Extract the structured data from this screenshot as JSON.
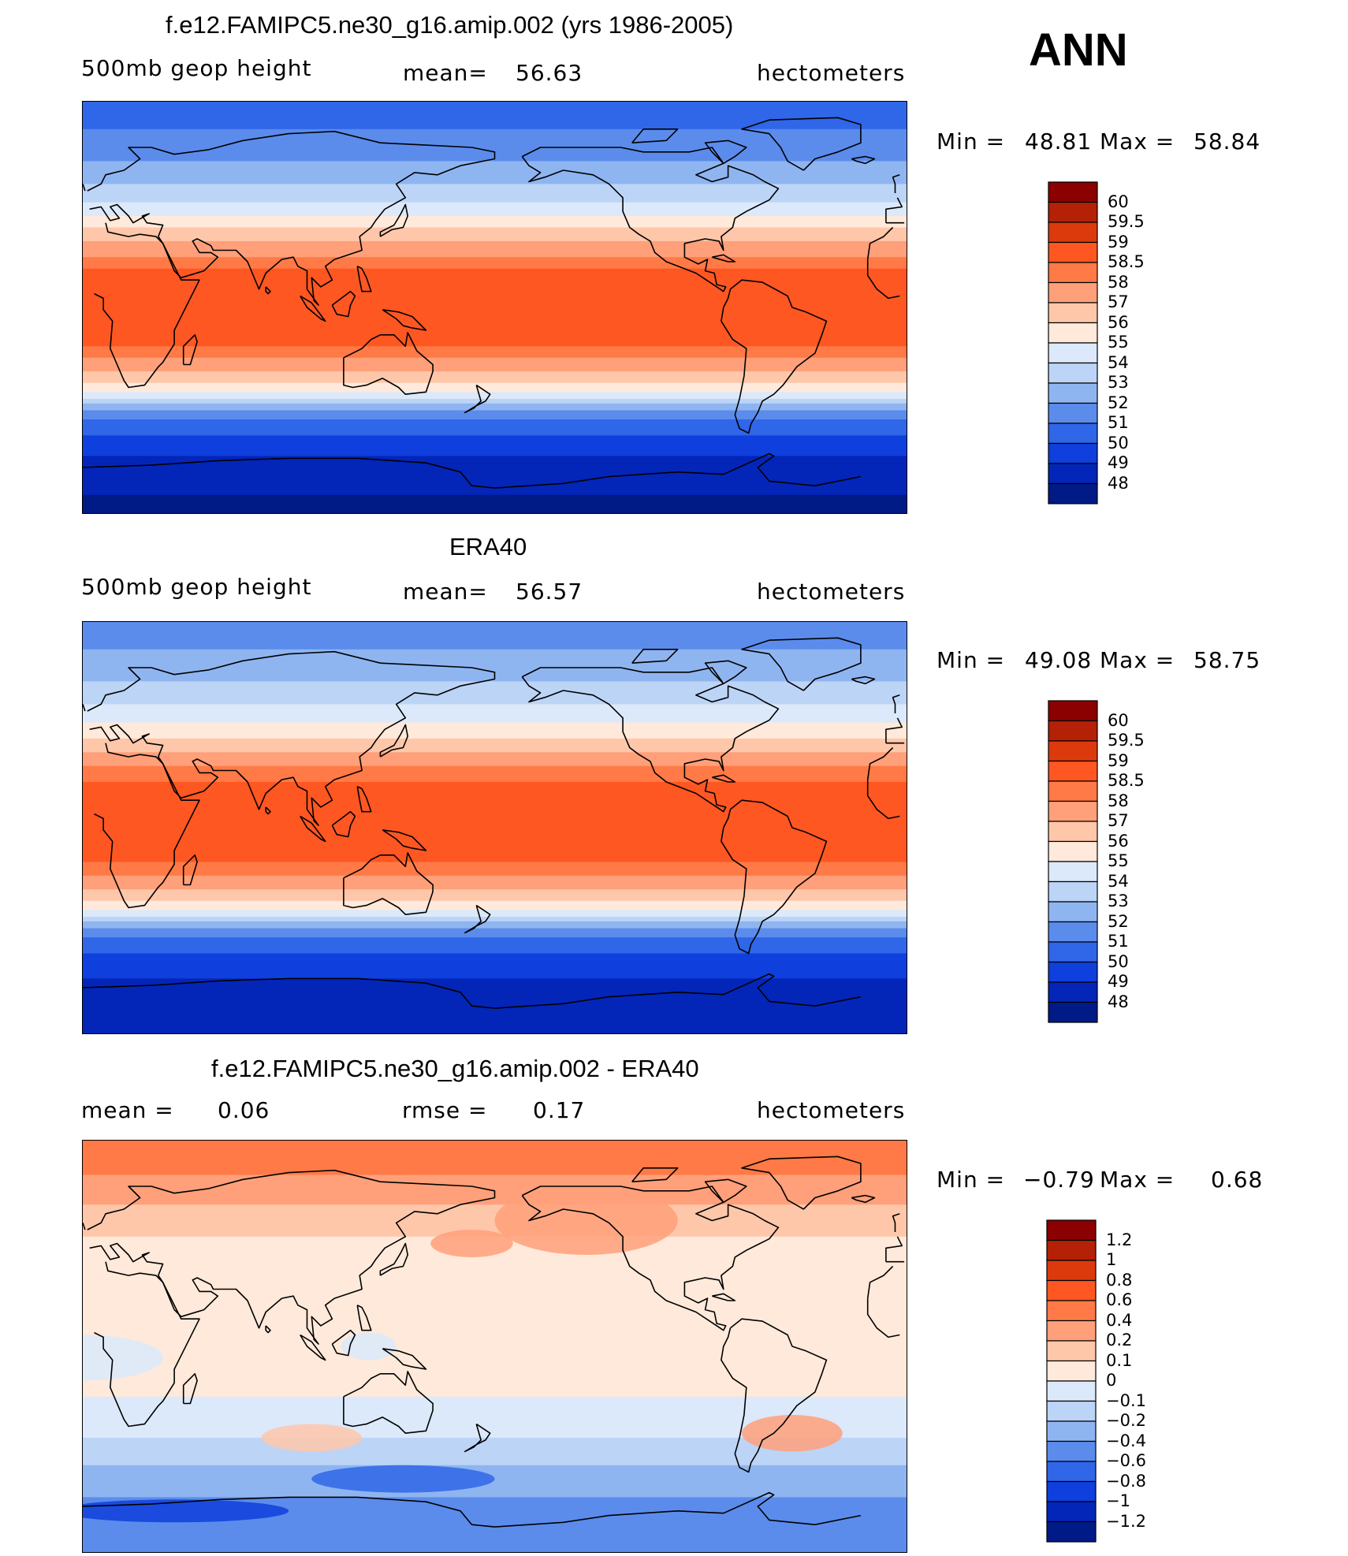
{
  "season": "ANN",
  "panels": [
    {
      "title": "f.e12.FAMIPC5.ne30_g16.amip.002 (yrs 1986-2005)",
      "left_label": "500mb geop height",
      "stat_label": "mean=",
      "stat_value": "56.63",
      "units": "hectometers",
      "min_label": "Min =",
      "min_value": "48.81",
      "max_label": "Max =",
      "max_value": "58.84"
    },
    {
      "title": "ERA40",
      "left_label": "500mb geop height",
      "stat_label": "mean=",
      "stat_value": "56.57",
      "units": "hectometers",
      "min_label": "Min =",
      "min_value": "49.08",
      "max_label": "Max =",
      "max_value": "58.75"
    },
    {
      "title": "f.e12.FAMIPC5.ne30_g16.amip.002 - ERA40",
      "left_label": "mean =",
      "left_value": "0.06",
      "stat_label": "rmse =",
      "stat_value": "0.17",
      "units": "hectometers",
      "min_label": "Min =",
      "min_value": "−0.79",
      "max_label": "Max =",
      "max_value": "0.68"
    }
  ],
  "chart_data": [
    {
      "type": "heatmap",
      "title": "f.e12.FAMIPC5.ne30_g16.amip.002 (yrs 1986-2005)",
      "variable": "500mb geop height",
      "units": "hectometers",
      "mean": 56.63,
      "min": 48.81,
      "max": 58.84,
      "colorbar_levels": [
        "60",
        "59.5",
        "59",
        "58.5",
        "58",
        "57",
        "56",
        "55",
        "54",
        "53",
        "52",
        "51",
        "50",
        "49",
        "48"
      ],
      "colorbar_colors": [
        "#8b0000",
        "#b42106",
        "#dc3a0d",
        "#ff5722",
        "#ff7a46",
        "#ffa07a",
        "#ffc7aa",
        "#ffe9da",
        "#dbe9fa",
        "#bcd4f6",
        "#8fb5f1",
        "#5b8cec",
        "#3066e8",
        "#0f3fdc",
        "#0325b8",
        "#001a86"
      ],
      "zonal_bands": [
        {
          "lat": 90,
          "level": 12
        },
        {
          "lat": 78,
          "level": 11
        },
        {
          "lat": 64,
          "level": 10
        },
        {
          "lat": 54,
          "level": 9
        },
        {
          "lat": 46,
          "level": 8
        },
        {
          "lat": 40,
          "level": 7
        },
        {
          "lat": 35,
          "level": 6
        },
        {
          "lat": 29,
          "level": 5
        },
        {
          "lat": 22,
          "level": 4
        },
        {
          "lat": 17,
          "level": 3
        },
        {
          "lat": -17,
          "level": 4
        },
        {
          "lat": -22,
          "level": 5
        },
        {
          "lat": -28,
          "level": 6
        },
        {
          "lat": -33,
          "level": 7
        },
        {
          "lat": -37,
          "level": 8
        },
        {
          "lat": -40,
          "level": 9
        },
        {
          "lat": -42,
          "level": 10
        },
        {
          "lat": -45,
          "level": 11
        },
        {
          "lat": -49,
          "level": 12
        },
        {
          "lat": -56,
          "level": 13
        },
        {
          "lat": -65,
          "level": 14
        },
        {
          "lat": -82,
          "level": 15
        }
      ]
    },
    {
      "type": "heatmap",
      "title": "ERA40",
      "variable": "500mb geop height",
      "units": "hectometers",
      "mean": 56.57,
      "min": 49.08,
      "max": 58.75,
      "colorbar_levels": [
        "60",
        "59.5",
        "59",
        "58.5",
        "58",
        "57",
        "56",
        "55",
        "54",
        "53",
        "52",
        "51",
        "50",
        "49",
        "48"
      ],
      "colorbar_colors": [
        "#8b0000",
        "#b42106",
        "#dc3a0d",
        "#ff5722",
        "#ff7a46",
        "#ffa07a",
        "#ffc7aa",
        "#ffe9da",
        "#dbe9fa",
        "#bcd4f6",
        "#8fb5f1",
        "#5b8cec",
        "#3066e8",
        "#0f3fdc",
        "#0325b8",
        "#001a86"
      ],
      "zonal_bands": [
        {
          "lat": 90,
          "level": 11
        },
        {
          "lat": 78,
          "level": 10
        },
        {
          "lat": 64,
          "level": 9
        },
        {
          "lat": 54,
          "level": 8
        },
        {
          "lat": 46,
          "level": 7
        },
        {
          "lat": 39,
          "level": 6
        },
        {
          "lat": 33,
          "level": 5
        },
        {
          "lat": 27,
          "level": 4
        },
        {
          "lat": 20,
          "level": 3
        },
        {
          "lat": -15,
          "level": 4
        },
        {
          "lat": -21,
          "level": 5
        },
        {
          "lat": -27,
          "level": 6
        },
        {
          "lat": -32,
          "level": 7
        },
        {
          "lat": -36,
          "level": 8
        },
        {
          "lat": -39,
          "level": 9
        },
        {
          "lat": -41,
          "level": 10
        },
        {
          "lat": -44,
          "level": 11
        },
        {
          "lat": -48,
          "level": 12
        },
        {
          "lat": -55,
          "level": 13
        },
        {
          "lat": -66,
          "level": 14
        }
      ]
    },
    {
      "type": "heatmap",
      "title": "f.e12.FAMIPC5.ne30_g16.amip.002 - ERA40",
      "variable": "difference",
      "units": "hectometers",
      "mean": 0.06,
      "rmse": 0.17,
      "min": -0.79,
      "max": 0.68,
      "colorbar_levels": [
        "1.2",
        "1",
        "0.8",
        "0.6",
        "0.4",
        "0.2",
        "0.1",
        "0",
        "−0.1",
        "−0.2",
        "−0.4",
        "−0.6",
        "−0.8",
        "−1",
        "−1.2"
      ],
      "colorbar_colors": [
        "#8b0000",
        "#b42106",
        "#dc3a0d",
        "#ff5722",
        "#ff7a46",
        "#ffa07a",
        "#ffc7aa",
        "#ffe9da",
        "#dbe9fa",
        "#bcd4f6",
        "#8fb5f1",
        "#5b8cec",
        "#3066e8",
        "#0f3fdc",
        "#0325b8",
        "#001a86"
      ],
      "zonal_bands": [
        {
          "lat": 90,
          "level": 4
        },
        {
          "lat": 75,
          "level": 5
        },
        {
          "lat": 62,
          "level": 6
        },
        {
          "lat": 48,
          "level": 7
        },
        {
          "lat": -22,
          "level": 8
        },
        {
          "lat": -40,
          "level": 9
        },
        {
          "lat": -52,
          "level": 10
        },
        {
          "lat": -66,
          "level": 11
        }
      ],
      "anomalies": [
        {
          "lon": 170,
          "lat": 45,
          "r_lon": 18,
          "r_lat": 6,
          "level": 5
        },
        {
          "lon": 220,
          "lat": 55,
          "r_lon": 40,
          "r_lat": 15,
          "level": 5
        },
        {
          "lon": 310,
          "lat": -38,
          "r_lon": 22,
          "r_lat": 8,
          "level": 5
        },
        {
          "lon": 100,
          "lat": -40,
          "r_lon": 22,
          "r_lat": 6,
          "level": 6
        },
        {
          "lon": 125,
          "lat": 0,
          "r_lon": 12,
          "r_lat": 6,
          "level": 8
        },
        {
          "lon": 140,
          "lat": -58,
          "r_lon": 40,
          "r_lat": 6,
          "level": 12
        },
        {
          "lon": 40,
          "lat": -72,
          "r_lon": 50,
          "r_lat": 5,
          "level": 13
        },
        {
          "lon": 0,
          "lat": -5,
          "r_lon": 35,
          "r_lat": 10,
          "level": 8
        }
      ]
    }
  ]
}
